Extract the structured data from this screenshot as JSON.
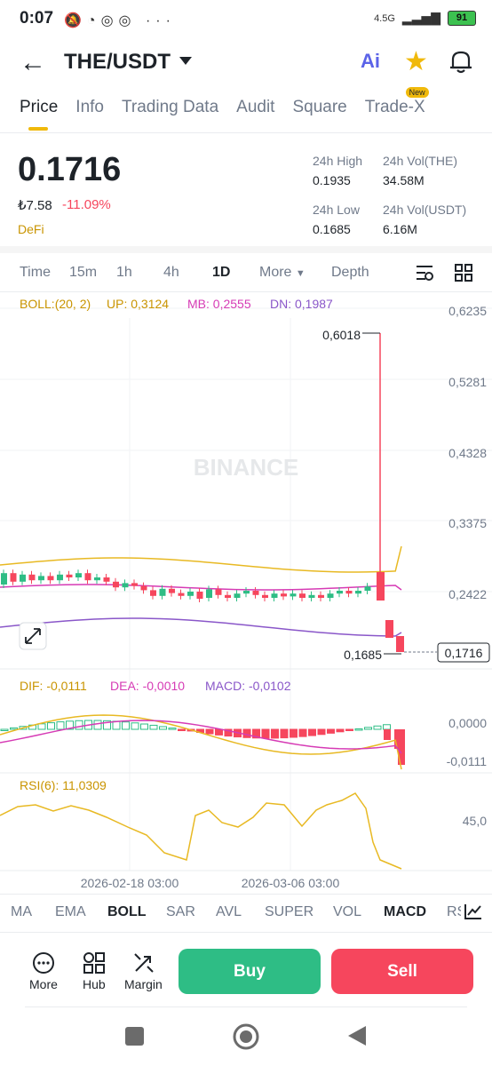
{
  "status_bar": {
    "time": "0:07",
    "battery": "91",
    "network": "4.5G"
  },
  "header": {
    "pair": "THE/USDT",
    "ai_label": "Ai"
  },
  "tabs": [
    {
      "label": "Price",
      "active": true
    },
    {
      "label": "Info"
    },
    {
      "label": "Trading Data"
    },
    {
      "label": "Audit"
    },
    {
      "label": "Square"
    },
    {
      "label": "Trade-X",
      "badge": "New"
    }
  ],
  "price": {
    "last": "0.1716",
    "fiat": "₺7.58",
    "change": "-11.09%",
    "tag": "DeFi",
    "stats": {
      "high_label": "24h High",
      "high": "0.1935",
      "vol_base_label": "24h Vol(THE)",
      "vol_base": "34.58M",
      "low_label": "24h Low",
      "low": "0.1685",
      "vol_quote_label": "24h Vol(USDT)",
      "vol_quote": "6.16M"
    }
  },
  "timeframes": [
    "Time",
    "15m",
    "1h",
    "4h",
    "1D",
    "More",
    "Depth"
  ],
  "chart": {
    "watermark": "BINANCE",
    "boll": {
      "title": "BOLL:(20, 2)",
      "up": "UP: 0,3124",
      "mb": "MB: 0,2555",
      "dn": "DN: 0,1987"
    },
    "y_ticks": [
      "0,6235",
      "0,5281",
      "0,4328",
      "0,3375",
      "0,2422"
    ],
    "high_marker": "0,6018",
    "low_marker": "0,1685",
    "last_marker": "0,1716",
    "macd": {
      "dif": "DIF: -0,0111",
      "dea": "DEA: -0,0010",
      "macd": "MACD: -0,0102",
      "ticks": [
        "0,0000",
        "-0,0111"
      ]
    },
    "rsi": {
      "label": "RSI(6): 11,0309",
      "tick": "45,0"
    },
    "x_ticks": [
      "2026-02-18 03:00",
      "2026-03-06 03:00"
    ]
  },
  "colors": {
    "up": "#2ebd85",
    "down": "#f6465d",
    "boll_up": "#e8b923",
    "boll_mb": "#d63bb5",
    "boll_dn": "#8a57c9",
    "accent": "#f0b90b"
  },
  "indicators": [
    "MA",
    "EMA",
    "BOLL",
    "SAR",
    "AVL",
    "SUPER",
    "VOL",
    "MACD",
    "RS"
  ],
  "actions": {
    "more": "More",
    "hub": "Hub",
    "margin": "Margin",
    "buy": "Buy",
    "sell": "Sell"
  }
}
